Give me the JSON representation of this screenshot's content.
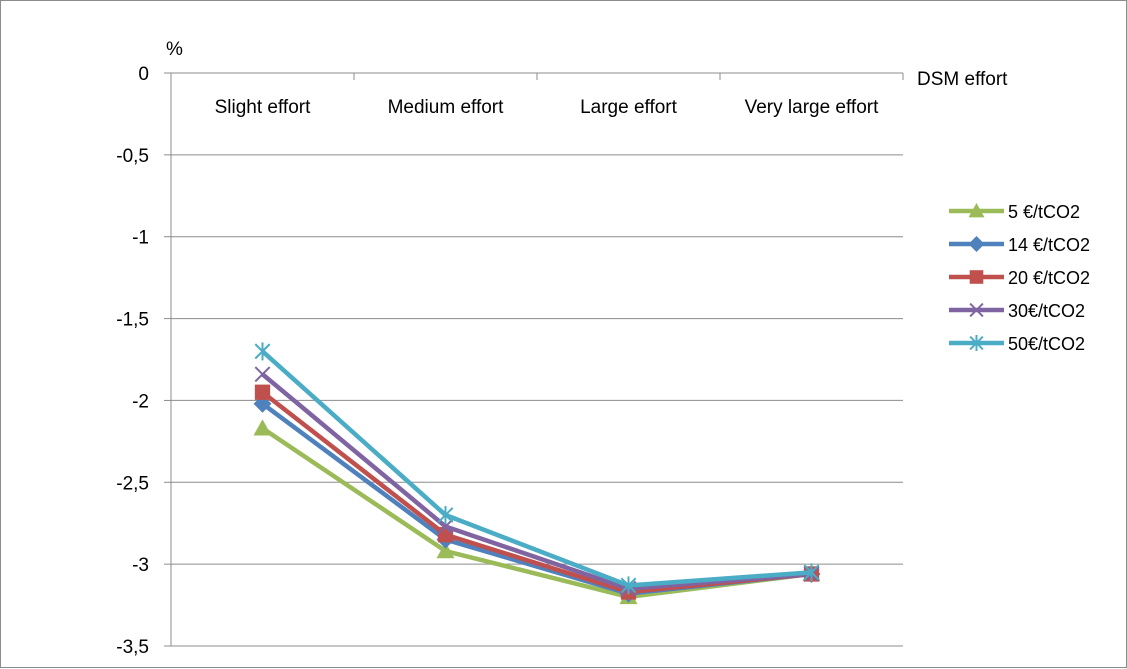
{
  "chart_data": {
    "type": "line",
    "title": "",
    "ylabel": "%",
    "xlabel": "DSM effort",
    "categories": [
      "Slight effort",
      "Medium effort",
      "Large effort",
      "Very large effort"
    ],
    "ylim": [
      -3.5,
      0
    ],
    "yticks": [
      0,
      -0.5,
      -1,
      -1.5,
      -2,
      -2.5,
      -3,
      -3.5
    ],
    "ytick_labels": [
      "0",
      "-0,5",
      "-1",
      "-1,5",
      "-2",
      "-2,5",
      "-3",
      "-3,5"
    ],
    "grid": true,
    "legend_position": "right",
    "series": [
      {
        "name": "5 €/tCO2",
        "color": "#9bbb59",
        "marker": "triangle",
        "values": [
          -2.17,
          -2.92,
          -3.2,
          -3.06
        ]
      },
      {
        "name": "14 €/tCO2",
        "color": "#4f81bd",
        "marker": "diamond",
        "values": [
          -2.02,
          -2.85,
          -3.18,
          -3.06
        ]
      },
      {
        "name": "20 €/tCO2",
        "color": "#c0504d",
        "marker": "square",
        "values": [
          -1.95,
          -2.82,
          -3.17,
          -3.06
        ]
      },
      {
        "name": "30€/tCO2",
        "color": "#8064a2",
        "marker": "x",
        "values": [
          -1.84,
          -2.77,
          -3.15,
          -3.06
        ]
      },
      {
        "name": "50€/tCO2",
        "color": "#4bacc6",
        "marker": "star",
        "values": [
          -1.7,
          -2.7,
          -3.13,
          -3.05
        ]
      }
    ]
  }
}
